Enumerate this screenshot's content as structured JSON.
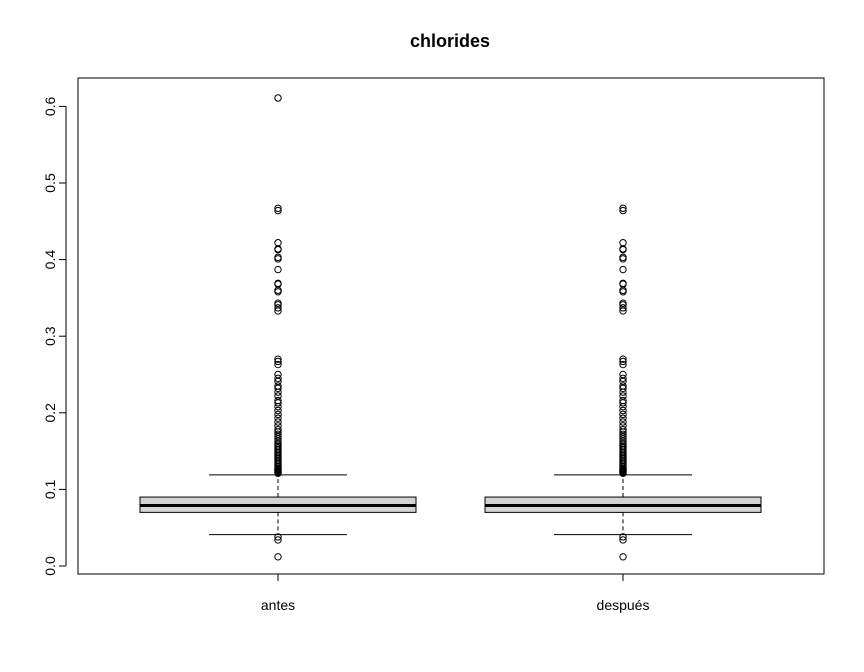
{
  "chart_data": {
    "type": "box",
    "title": "chlorides",
    "xlabel": "",
    "ylabel": "",
    "ylim": [
      0.0,
      0.62
    ],
    "yticks": [
      "0.0",
      "0.1",
      "0.2",
      "0.3",
      "0.4",
      "0.5",
      "0.6"
    ],
    "categories": [
      "antes",
      "después"
    ],
    "colors": {
      "box_fill": "#d3d3d3",
      "stroke": "#000000",
      "background": "#ffffff"
    },
    "boxes": [
      {
        "label": "antes",
        "whisker_low": 0.041,
        "q1": 0.07,
        "median": 0.079,
        "q3": 0.09,
        "whisker_high": 0.119,
        "outliers": [
          0.012,
          0.034,
          0.038,
          0.121,
          0.122,
          0.123,
          0.124,
          0.125,
          0.126,
          0.127,
          0.128,
          0.13,
          0.132,
          0.134,
          0.136,
          0.138,
          0.14,
          0.142,
          0.144,
          0.146,
          0.148,
          0.15,
          0.152,
          0.154,
          0.156,
          0.158,
          0.16,
          0.163,
          0.166,
          0.169,
          0.172,
          0.175,
          0.178,
          0.183,
          0.188,
          0.193,
          0.198,
          0.203,
          0.208,
          0.213,
          0.216,
          0.222,
          0.227,
          0.232,
          0.235,
          0.241,
          0.245,
          0.25,
          0.263,
          0.267,
          0.27,
          0.333,
          0.337,
          0.341,
          0.343,
          0.358,
          0.36,
          0.368,
          0.369,
          0.387,
          0.401,
          0.403,
          0.413,
          0.414,
          0.422,
          0.464,
          0.467,
          0.611
        ]
      },
      {
        "label": "después",
        "whisker_low": 0.041,
        "q1": 0.07,
        "median": 0.079,
        "q3": 0.09,
        "whisker_high": 0.119,
        "outliers": [
          0.012,
          0.034,
          0.038,
          0.121,
          0.122,
          0.123,
          0.124,
          0.125,
          0.126,
          0.127,
          0.128,
          0.13,
          0.132,
          0.134,
          0.136,
          0.138,
          0.14,
          0.142,
          0.144,
          0.146,
          0.148,
          0.15,
          0.152,
          0.154,
          0.156,
          0.158,
          0.16,
          0.163,
          0.166,
          0.169,
          0.172,
          0.175,
          0.178,
          0.183,
          0.188,
          0.193,
          0.198,
          0.203,
          0.208,
          0.213,
          0.216,
          0.222,
          0.227,
          0.232,
          0.235,
          0.241,
          0.245,
          0.25,
          0.263,
          0.267,
          0.27,
          0.333,
          0.337,
          0.341,
          0.343,
          0.358,
          0.36,
          0.368,
          0.369,
          0.387,
          0.401,
          0.403,
          0.413,
          0.414,
          0.422,
          0.464,
          0.467
        ]
      }
    ]
  }
}
